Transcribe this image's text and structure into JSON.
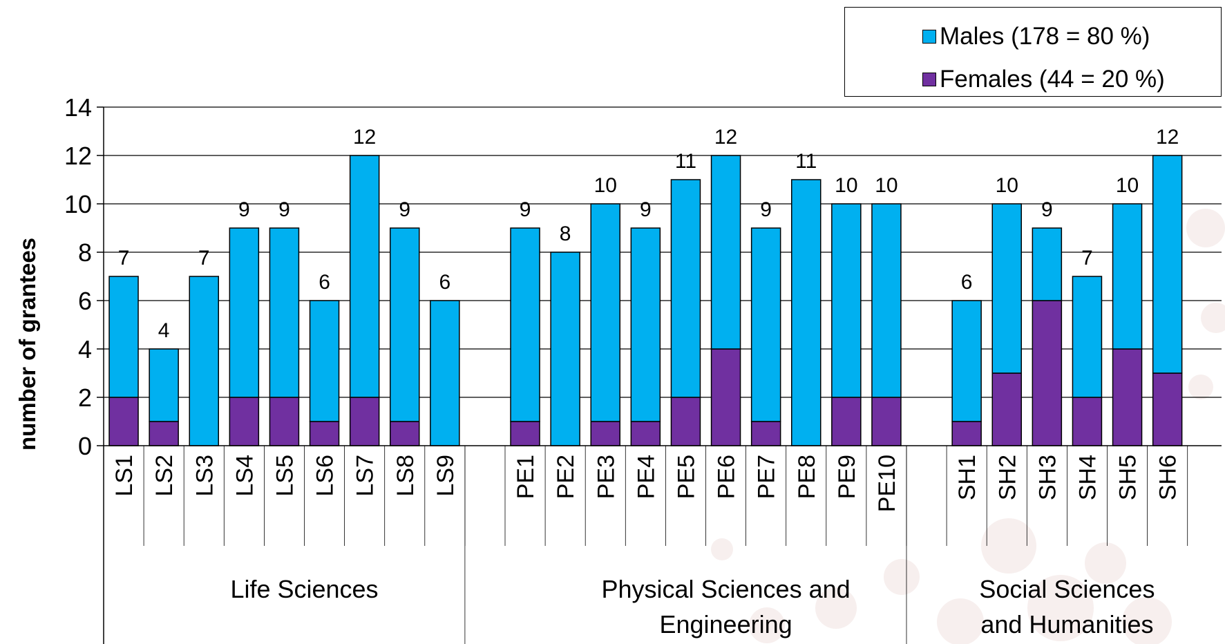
{
  "chart_data": {
    "type": "bar",
    "stacked": true,
    "ylabel": "number of grantees",
    "ylim": [
      0,
      14
    ],
    "yticks": [
      0,
      2,
      4,
      6,
      8,
      10,
      12,
      14
    ],
    "grid": true,
    "legend_position": "top-right",
    "groups": [
      {
        "name": "Life Sciences",
        "categories": [
          "LS1",
          "LS2",
          "LS3",
          "LS4",
          "LS5",
          "LS6",
          "LS7",
          "LS8",
          "LS9"
        ]
      },
      {
        "name": "Physical Sciences and Engineering",
        "categories": [
          "PE1",
          "PE2",
          "PE3",
          "PE4",
          "PE5",
          "PE6",
          "PE7",
          "PE8",
          "PE9",
          "PE10"
        ]
      },
      {
        "name": "Social Sciences and Humanities",
        "categories": [
          "SH1",
          "SH2",
          "SH3",
          "SH4",
          "SH5",
          "SH6"
        ]
      }
    ],
    "categories": [
      "LS1",
      "LS2",
      "LS3",
      "LS4",
      "LS5",
      "LS6",
      "LS7",
      "LS8",
      "LS9",
      "PE1",
      "PE2",
      "PE3",
      "PE4",
      "PE5",
      "PE6",
      "PE7",
      "PE8",
      "PE9",
      "PE10",
      "SH1",
      "SH2",
      "SH3",
      "SH4",
      "SH5",
      "SH6"
    ],
    "series": [
      {
        "name": "Females (44 = 20 %)",
        "color": "#7030A0",
        "values": [
          2,
          1,
          0,
          2,
          2,
          1,
          2,
          1,
          0,
          1,
          0,
          1,
          1,
          2,
          4,
          1,
          0,
          2,
          2,
          1,
          3,
          6,
          2,
          4,
          3
        ]
      },
      {
        "name": "Males (178 = 80 %)",
        "color": "#00B0F0",
        "values": [
          5,
          3,
          7,
          7,
          7,
          5,
          10,
          8,
          6,
          8,
          8,
          9,
          8,
          9,
          8,
          8,
          11,
          8,
          8,
          5,
          7,
          3,
          5,
          6,
          9
        ]
      }
    ],
    "totals": [
      7,
      4,
      7,
      9,
      9,
      6,
      12,
      9,
      6,
      9,
      8,
      10,
      9,
      11,
      12,
      9,
      11,
      10,
      10,
      6,
      10,
      9,
      7,
      10,
      12
    ]
  }
}
